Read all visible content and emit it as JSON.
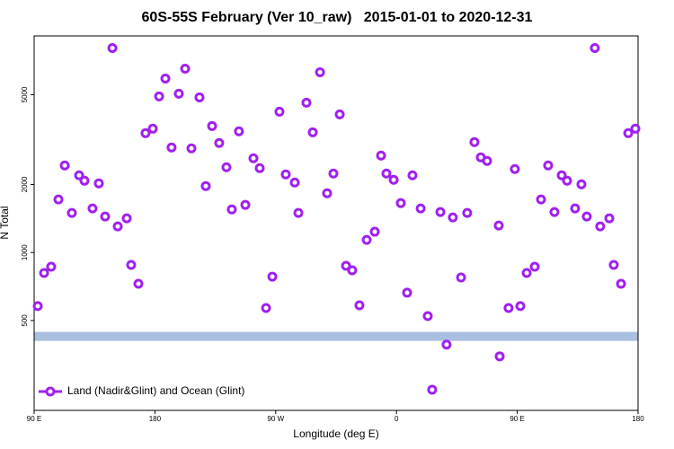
{
  "chart_data": {
    "type": "scatter",
    "title": "60S-55S February (Ver 10_raw)   2015-01-01 to 2020-12-31",
    "xlabel": "Longitude (deg E)",
    "ylabel": "N Total",
    "xlim": [
      90,
      540
    ],
    "ylim": [
      200,
      9100
    ],
    "ylog": true,
    "grid": false,
    "legend_position": "lower left",
    "xticks": [
      {
        "value": 90,
        "label": "90 E"
      },
      180,
      {
        "value": 270,
        "label": "90 W"
      },
      {
        "value": 360,
        "label": "0"
      },
      {
        "value": 450,
        "label": "90 E"
      },
      {
        "value": 540,
        "label": "180"
      }
    ],
    "yticks": [
      500,
      1000,
      2000,
      5000
    ],
    "hline": {
      "value": 425,
      "color": "#a9bfe0"
    },
    "series": [
      {
        "name": "Land (Nadir&Glint) and Ocean (Glint)",
        "color": "#a020f0",
        "x": [
          92.7,
          97.4,
          102.7,
          108.1,
          112.8,
          118.1,
          123.5,
          127.5,
          133.5,
          138.2,
          142.9,
          148.3,
          152.3,
          159.0,
          162.3,
          167.7,
          173.0,
          178.4,
          183.1,
          187.8,
          192.4,
          197.8,
          202.5,
          207.2,
          213.2,
          217.9,
          222.6,
          227.9,
          233.3,
          237.3,
          242.6,
          247.4,
          253.4,
          258.1,
          262.8,
          267.5,
          272.8,
          277.5,
          284.2,
          286.9,
          292.9,
          297.6,
          303.0,
          308.3,
          313.0,
          317.7,
          322.4,
          327.0,
          332.4,
          337.8,
          343.8,
          348.5,
          352.5,
          357.9,
          363.2,
          367.9,
          371.9,
          378.0,
          383.3,
          386.6,
          392.7,
          397.3,
          402.0,
          408.1,
          412.7,
          418.1,
          422.8,
          427.5,
          436.2,
          436.9,
          443.5,
          448.2,
          452.3,
          457.0,
          463.0,
          467.7,
          473.0,
          477.7,
          483.1,
          487.1,
          493.1,
          497.8,
          501.8,
          507.8,
          511.8,
          518.6,
          521.9,
          527.3,
          532.7,
          538.0
        ],
        "values": [
          579,
          812,
          865,
          1717,
          2430,
          1497,
          2197,
          2080,
          1567,
          2024,
          1443,
          8040,
          1305,
          1417,
          881,
          727,
          3376,
          3534,
          4909,
          5894,
          2917,
          5046,
          6516,
          2890,
          4863,
          1969,
          3632,
          3053,
          2385,
          1552,
          3439,
          1625,
          2614,
          2364,
          568,
          782,
          4203,
          2218,
          2042,
          1497,
          4606,
          3406,
          6284,
          1830,
          2238,
          4090,
          873,
          834,
          584,
          1138,
          1236,
          2687,
          2238,
          2099,
          1655,
          664,
          2197,
          1567,
          523,
          247,
          1511,
          391,
          1430,
          775,
          1497,
          3081,
          2638,
          2544,
          1317,
          347,
          568,
          2342,
          579,
          812,
          865,
          1717,
          2430,
          1511,
          2197,
          2080,
          1567,
          2005,
          1443,
          8040,
          1305,
          1417,
          881,
          727,
          3376,
          3534
        ]
      }
    ]
  }
}
